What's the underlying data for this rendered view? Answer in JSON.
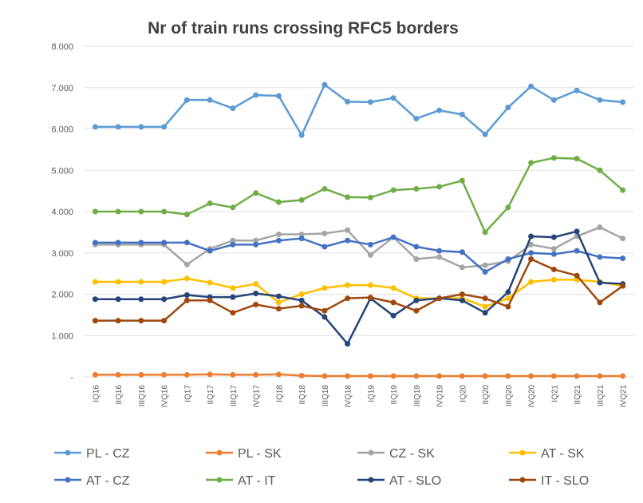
{
  "chart_data": {
    "type": "line",
    "title": "Nr of train runs crossing RFC5 borders",
    "categories": [
      "IQ16",
      "IIQ16",
      "IIIQ16",
      "IVQ16",
      "IQ17",
      "IIQ17",
      "IIIQ17",
      "IVQ17",
      "IQ18",
      "IIQ18",
      "IIIQ18",
      "IVQ18",
      "IQ19",
      "IIQ19",
      "IIIQ19",
      "IVQ19",
      "IQ20",
      "IIQ20",
      "IIIQ20",
      "IVQ20",
      "IQ21",
      "IIQ21",
      "IIIQ21",
      "IVQ21"
    ],
    "series": [
      {
        "name": "PL - CZ",
        "color": "#5b9bd5",
        "values": [
          6050,
          6050,
          6050,
          6050,
          6700,
          6700,
          6500,
          6820,
          6800,
          5850,
          7070,
          6660,
          6650,
          6750,
          6250,
          6450,
          6350,
          5870,
          6520,
          7030,
          6700,
          6930,
          6700,
          6650
        ]
      },
      {
        "name": "PL - SK",
        "color": "#ed7d31",
        "values": [
          50,
          50,
          50,
          50,
          50,
          60,
          50,
          50,
          60,
          30,
          20,
          20,
          20,
          20,
          20,
          20,
          20,
          20,
          20,
          20,
          20,
          20,
          20,
          20
        ]
      },
      {
        "name": "CZ - SK",
        "color": "#a5a5a5",
        "values": [
          3200,
          3200,
          3200,
          3200,
          2720,
          3100,
          3300,
          3300,
          3450,
          3450,
          3470,
          3550,
          2950,
          3380,
          2850,
          2900,
          2650,
          2700,
          2800,
          3200,
          3100,
          3400,
          3620,
          3350
        ]
      },
      {
        "name": "AT - SK",
        "color": "#ffc000",
        "values": [
          2300,
          2300,
          2300,
          2300,
          2380,
          2280,
          2150,
          2250,
          1800,
          2000,
          2150,
          2220,
          2220,
          2150,
          1900,
          1900,
          1900,
          1700,
          1900,
          2300,
          2350,
          2350,
          2300,
          2200
        ]
      },
      {
        "name": "AT - CZ",
        "color": "#4472c4",
        "values": [
          3250,
          3250,
          3250,
          3250,
          3250,
          3050,
          3200,
          3200,
          3300,
          3350,
          3150,
          3300,
          3200,
          3380,
          3150,
          3050,
          3020,
          2540,
          2850,
          3000,
          2970,
          3050,
          2900,
          2870
        ]
      },
      {
        "name": "AT - IT",
        "color": "#70ad47",
        "values": [
          4000,
          4000,
          4000,
          4000,
          3930,
          4200,
          4100,
          4450,
          4230,
          4280,
          4550,
          4350,
          4340,
          4520,
          4550,
          4600,
          4750,
          3500,
          4100,
          5180,
          5300,
          5280,
          5000,
          4520
        ]
      },
      {
        "name": "AT - SLO",
        "color": "#264478",
        "values": [
          1880,
          1880,
          1880,
          1880,
          1980,
          1930,
          1930,
          2020,
          1950,
          1850,
          1450,
          800,
          1900,
          1480,
          1850,
          1900,
          1850,
          1550,
          2050,
          3400,
          3380,
          3520,
          2280,
          2250
        ]
      },
      {
        "name": "IT - SLO",
        "color": "#9e480e",
        "values": [
          1360,
          1360,
          1360,
          1360,
          1850,
          1850,
          1550,
          1750,
          1650,
          1720,
          1600,
          1900,
          1920,
          1800,
          1600,
          1900,
          2000,
          1900,
          1700,
          2850,
          2600,
          2450,
          1800,
          2200
        ]
      }
    ],
    "ylim": [
      0,
      8000
    ],
    "yticks": [
      {
        "value": 0,
        "label": "-"
      },
      {
        "value": 1000,
        "label": "1.000"
      },
      {
        "value": 2000,
        "label": "2.000"
      },
      {
        "value": 3000,
        "label": "3.000"
      },
      {
        "value": 4000,
        "label": "4.000"
      },
      {
        "value": 5000,
        "label": "5.000"
      },
      {
        "value": 6000,
        "label": "6.000"
      },
      {
        "value": 7000,
        "label": "7.000"
      },
      {
        "value": 8000,
        "label": "8.000"
      }
    ],
    "grid": true
  }
}
